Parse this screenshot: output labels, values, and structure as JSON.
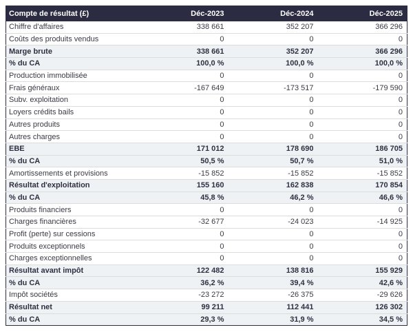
{
  "colors": {
    "header_bg": "#2b2b42",
    "header_text": "#ffffff",
    "emphasis_bg": "#eef2f5",
    "row_border": "#dcdcdc",
    "outer_border": "#2b2b42",
    "text": "#3a3a44",
    "page_bg": "#ffffff"
  },
  "table": {
    "header": {
      "label": "Compte de résultat (£)",
      "columns": [
        "Déc-2023",
        "Déc-2024",
        "Déc-2025"
      ]
    },
    "rows": [
      {
        "label": "Chiffre d'affaires",
        "values": [
          "338 661",
          "352 207",
          "366 296"
        ],
        "emphasis": false
      },
      {
        "label": "Coûts des produits vendus",
        "values": [
          "0",
          "0",
          "0"
        ],
        "emphasis": false
      },
      {
        "label": "Marge brute",
        "values": [
          "338 661",
          "352 207",
          "366 296"
        ],
        "emphasis": true
      },
      {
        "label": "% du CA",
        "values": [
          "100,0 %",
          "100,0 %",
          "100,0 %"
        ],
        "emphasis": true
      },
      {
        "label": "Production immobilisée",
        "values": [
          "0",
          "0",
          "0"
        ],
        "emphasis": false
      },
      {
        "label": "Frais généraux",
        "values": [
          "-167 649",
          "-173 517",
          "-179 590"
        ],
        "emphasis": false
      },
      {
        "label": "Subv. exploitation",
        "values": [
          "0",
          "0",
          "0"
        ],
        "emphasis": false
      },
      {
        "label": "Loyers crédits bails",
        "values": [
          "0",
          "0",
          "0"
        ],
        "emphasis": false
      },
      {
        "label": "Autres produits",
        "values": [
          "0",
          "0",
          "0"
        ],
        "emphasis": false
      },
      {
        "label": "Autres charges",
        "values": [
          "0",
          "0",
          "0"
        ],
        "emphasis": false
      },
      {
        "label": "EBE",
        "values": [
          "171 012",
          "178 690",
          "186 705"
        ],
        "emphasis": true
      },
      {
        "label": "% du CA",
        "values": [
          "50,5 %",
          "50,7 %",
          "51,0 %"
        ],
        "emphasis": true
      },
      {
        "label": "Amortissements et provisions",
        "values": [
          "-15 852",
          "-15 852",
          "-15 852"
        ],
        "emphasis": false
      },
      {
        "label": "Résultat d'exploitation",
        "values": [
          "155 160",
          "162 838",
          "170 854"
        ],
        "emphasis": true
      },
      {
        "label": "% du CA",
        "values": [
          "45,8 %",
          "46,2 %",
          "46,6 %"
        ],
        "emphasis": true
      },
      {
        "label": "Produits financiers",
        "values": [
          "0",
          "0",
          "0"
        ],
        "emphasis": false
      },
      {
        "label": "Charges financières",
        "values": [
          "-32 677",
          "-24 023",
          "-14 925"
        ],
        "emphasis": false
      },
      {
        "label": "Profit (perte) sur cessions",
        "values": [
          "0",
          "0",
          "0"
        ],
        "emphasis": false
      },
      {
        "label": "Produits exceptionnels",
        "values": [
          "0",
          "0",
          "0"
        ],
        "emphasis": false
      },
      {
        "label": "Charges exceptionnelles",
        "values": [
          "0",
          "0",
          "0"
        ],
        "emphasis": false
      },
      {
        "label": "Résultat avant impôt",
        "values": [
          "122 482",
          "138 816",
          "155 929"
        ],
        "emphasis": true
      },
      {
        "label": "% du CA",
        "values": [
          "36,2 %",
          "39,4 %",
          "42,6 %"
        ],
        "emphasis": true
      },
      {
        "label": "Impôt sociétés",
        "values": [
          "-23 272",
          "-26 375",
          "-29 626"
        ],
        "emphasis": false
      },
      {
        "label": "Résultat net",
        "values": [
          "99 211",
          "112 441",
          "126 302"
        ],
        "emphasis": true
      },
      {
        "label": "% du CA",
        "values": [
          "29,3 %",
          "31,9 %",
          "34,5 %"
        ],
        "emphasis": true
      }
    ]
  },
  "chart_data": {
    "type": "table",
    "title": "Compte de résultat (£)",
    "categories": [
      "Déc-2023",
      "Déc-2024",
      "Déc-2025"
    ],
    "series": [
      {
        "name": "Chiffre d'affaires",
        "values": [
          338661,
          352207,
          366296
        ]
      },
      {
        "name": "Coûts des produits vendus",
        "values": [
          0,
          0,
          0
        ]
      },
      {
        "name": "Marge brute",
        "values": [
          338661,
          352207,
          366296
        ]
      },
      {
        "name": "Marge brute % du CA",
        "values": [
          100.0,
          100.0,
          100.0
        ]
      },
      {
        "name": "Production immobilisée",
        "values": [
          0,
          0,
          0
        ]
      },
      {
        "name": "Frais généraux",
        "values": [
          -167649,
          -173517,
          -179590
        ]
      },
      {
        "name": "Subv. exploitation",
        "values": [
          0,
          0,
          0
        ]
      },
      {
        "name": "Loyers crédits bails",
        "values": [
          0,
          0,
          0
        ]
      },
      {
        "name": "Autres produits",
        "values": [
          0,
          0,
          0
        ]
      },
      {
        "name": "Autres charges",
        "values": [
          0,
          0,
          0
        ]
      },
      {
        "name": "EBE",
        "values": [
          171012,
          178690,
          186705
        ]
      },
      {
        "name": "EBE % du CA",
        "values": [
          50.5,
          50.7,
          51.0
        ]
      },
      {
        "name": "Amortissements et provisions",
        "values": [
          -15852,
          -15852,
          -15852
        ]
      },
      {
        "name": "Résultat d'exploitation",
        "values": [
          155160,
          162838,
          170854
        ]
      },
      {
        "name": "Résultat d'exploitation % du CA",
        "values": [
          45.8,
          46.2,
          46.6
        ]
      },
      {
        "name": "Produits financiers",
        "values": [
          0,
          0,
          0
        ]
      },
      {
        "name": "Charges financières",
        "values": [
          -32677,
          -24023,
          -14925
        ]
      },
      {
        "name": "Profit (perte) sur cessions",
        "values": [
          0,
          0,
          0
        ]
      },
      {
        "name": "Produits exceptionnels",
        "values": [
          0,
          0,
          0
        ]
      },
      {
        "name": "Charges exceptionnelles",
        "values": [
          0,
          0,
          0
        ]
      },
      {
        "name": "Résultat avant impôt",
        "values": [
          122482,
          138816,
          155929
        ]
      },
      {
        "name": "Résultat avant impôt % du CA",
        "values": [
          36.2,
          39.4,
          42.6
        ]
      },
      {
        "name": "Impôt sociétés",
        "values": [
          -23272,
          -26375,
          -29626
        ]
      },
      {
        "name": "Résultat net",
        "values": [
          99211,
          112441,
          126302
        ]
      },
      {
        "name": "Résultat net % du CA",
        "values": [
          29.3,
          31.9,
          34.5
        ]
      }
    ]
  }
}
